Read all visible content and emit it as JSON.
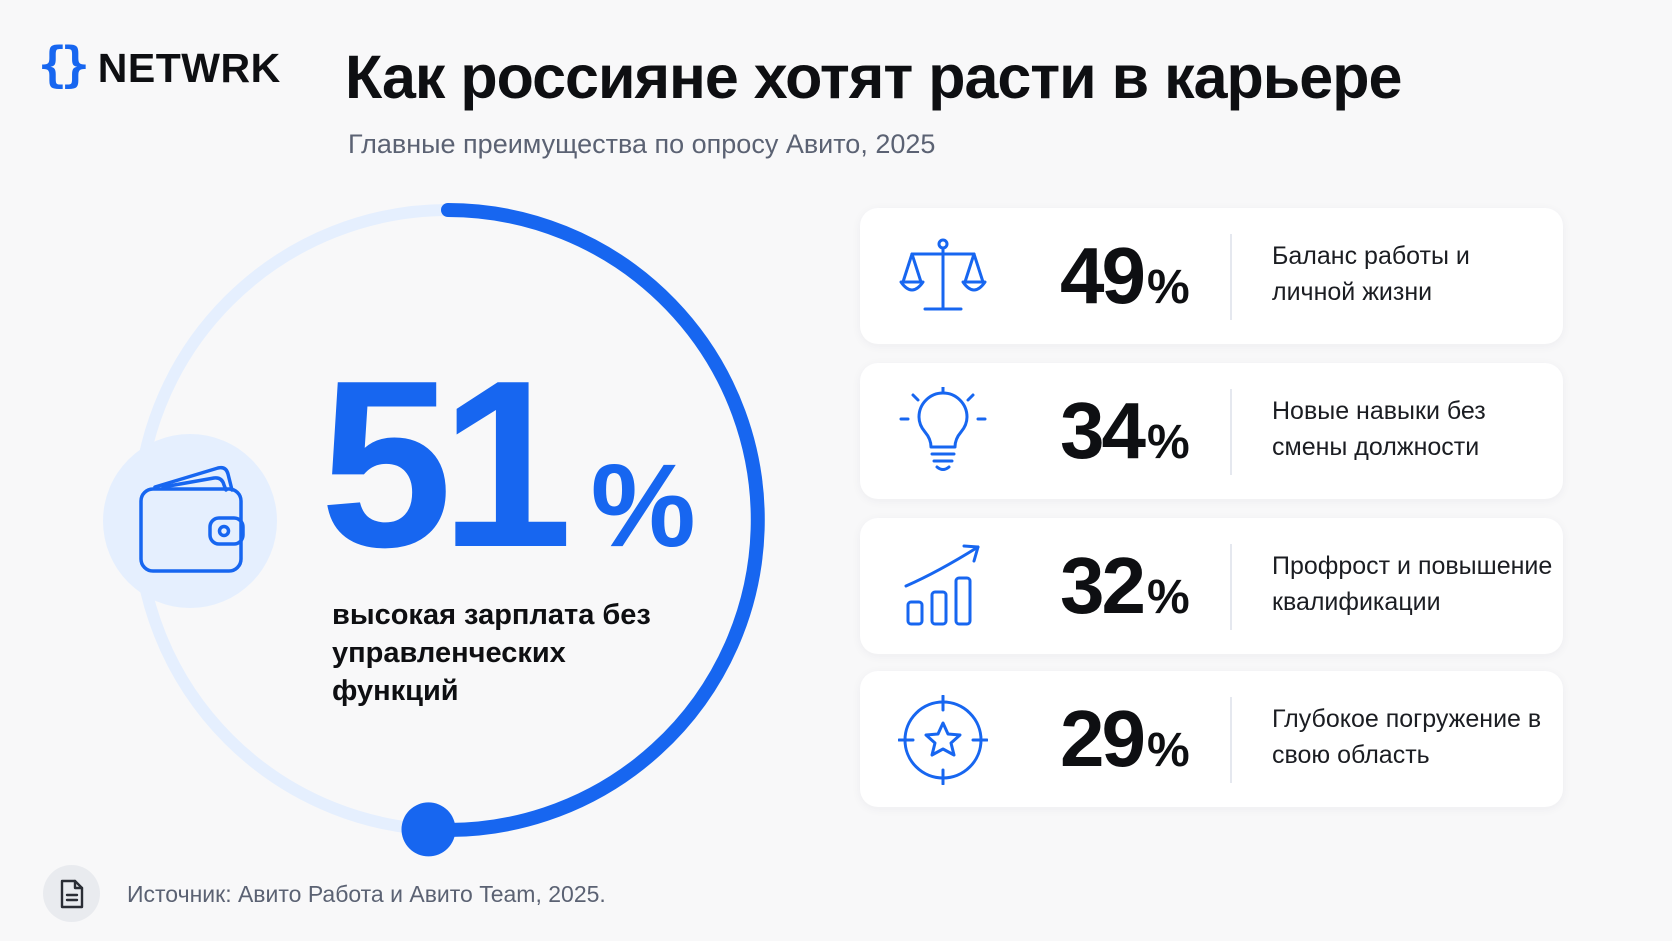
{
  "brand": {
    "braces": "{}",
    "name": "NETWRK"
  },
  "header": {
    "title": "Как россияне хотят расти в карьере",
    "subtitle": "Главные преимущества по опросу Авито, 2025"
  },
  "colors": {
    "accent": "#1766f0",
    "accent_light": "#e5effe",
    "text": "#0e0f12",
    "muted": "#5b6273",
    "background": "#f8f8f9"
  },
  "chart_data": {
    "type": "bar",
    "unit": "%",
    "highlight": {
      "value": 51,
      "unit": "%",
      "label": "высокая зарплата без управленческих функций",
      "icon": "wallet-icon"
    },
    "categories": [
      "Высокая зарплата без управленческих функций",
      "Баланс работы и личной жизни",
      "Новые навыки без смены должности",
      "Профрост и повышение квалификации",
      "Глубокое погружение в свою область"
    ],
    "values": [
      51,
      49,
      34,
      32,
      29
    ],
    "items": [
      {
        "value": 49,
        "unit": "%",
        "label": "Баланс работы и личной жизни",
        "icon": "scales-icon"
      },
      {
        "value": 34,
        "unit": "%",
        "label": "Новые навыки без смены должности",
        "icon": "lightbulb-icon"
      },
      {
        "value": 32,
        "unit": "%",
        "label": "Профрост и повышение квалификации",
        "icon": "growth-chart-icon"
      },
      {
        "value": 29,
        "unit": "%",
        "label": "Глубокое погружение в свою область",
        "icon": "target-star-icon"
      }
    ]
  },
  "footer": {
    "source": "Источник: Авито Работа и Авито Team, 2025.",
    "source_icon": "document-icon"
  }
}
